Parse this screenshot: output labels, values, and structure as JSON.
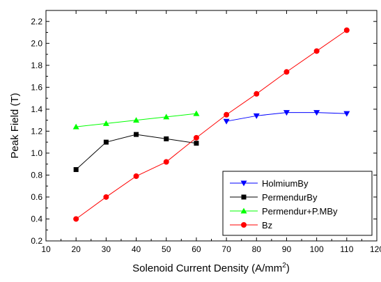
{
  "chart_data": {
    "type": "line",
    "xlabel": "Solenoid Current Density (A/mm",
    "xlabel_superscript": "2",
    "xlabel_suffix": ")",
    "ylabel": "Peak Field (T)",
    "xlim": [
      10,
      120
    ],
    "ylim": [
      0.2,
      2.3
    ],
    "xticks": [
      "10",
      "20",
      "30",
      "40",
      "50",
      "60",
      "70",
      "80",
      "90",
      "100",
      "110",
      "120"
    ],
    "yticks": [
      "0.2",
      "0.4",
      "0.6",
      "0.8",
      "1.0",
      "1.2",
      "1.4",
      "1.6",
      "1.8",
      "2.0",
      "2.2"
    ],
    "grid": false,
    "legend_position": "bottom-right",
    "series": [
      {
        "name": "HolmiumBy",
        "color": "#0000ff",
        "marker": "triangle-down",
        "x": [
          70,
          80,
          90,
          100,
          110
        ],
        "y": [
          1.29,
          1.34,
          1.37,
          1.37,
          1.36
        ]
      },
      {
        "name": "PermendurBy",
        "color": "#000000",
        "marker": "square",
        "x": [
          20,
          30,
          40,
          50,
          60
        ],
        "y": [
          0.85,
          1.1,
          1.17,
          1.13,
          1.09
        ]
      },
      {
        "name": "Permendur+P.MBy",
        "color": "#00ff00",
        "marker": "triangle-up",
        "x": [
          20,
          30,
          40,
          50,
          60
        ],
        "y": [
          1.24,
          1.27,
          1.3,
          1.33,
          1.36
        ]
      },
      {
        "name": "Bz",
        "color": "#ff0000",
        "marker": "circle",
        "x": [
          20,
          30,
          40,
          50,
          60,
          70,
          80,
          90,
          100,
          110
        ],
        "y": [
          0.4,
          0.6,
          0.79,
          0.92,
          1.14,
          1.35,
          1.54,
          1.74,
          1.93,
          2.12
        ]
      }
    ]
  }
}
